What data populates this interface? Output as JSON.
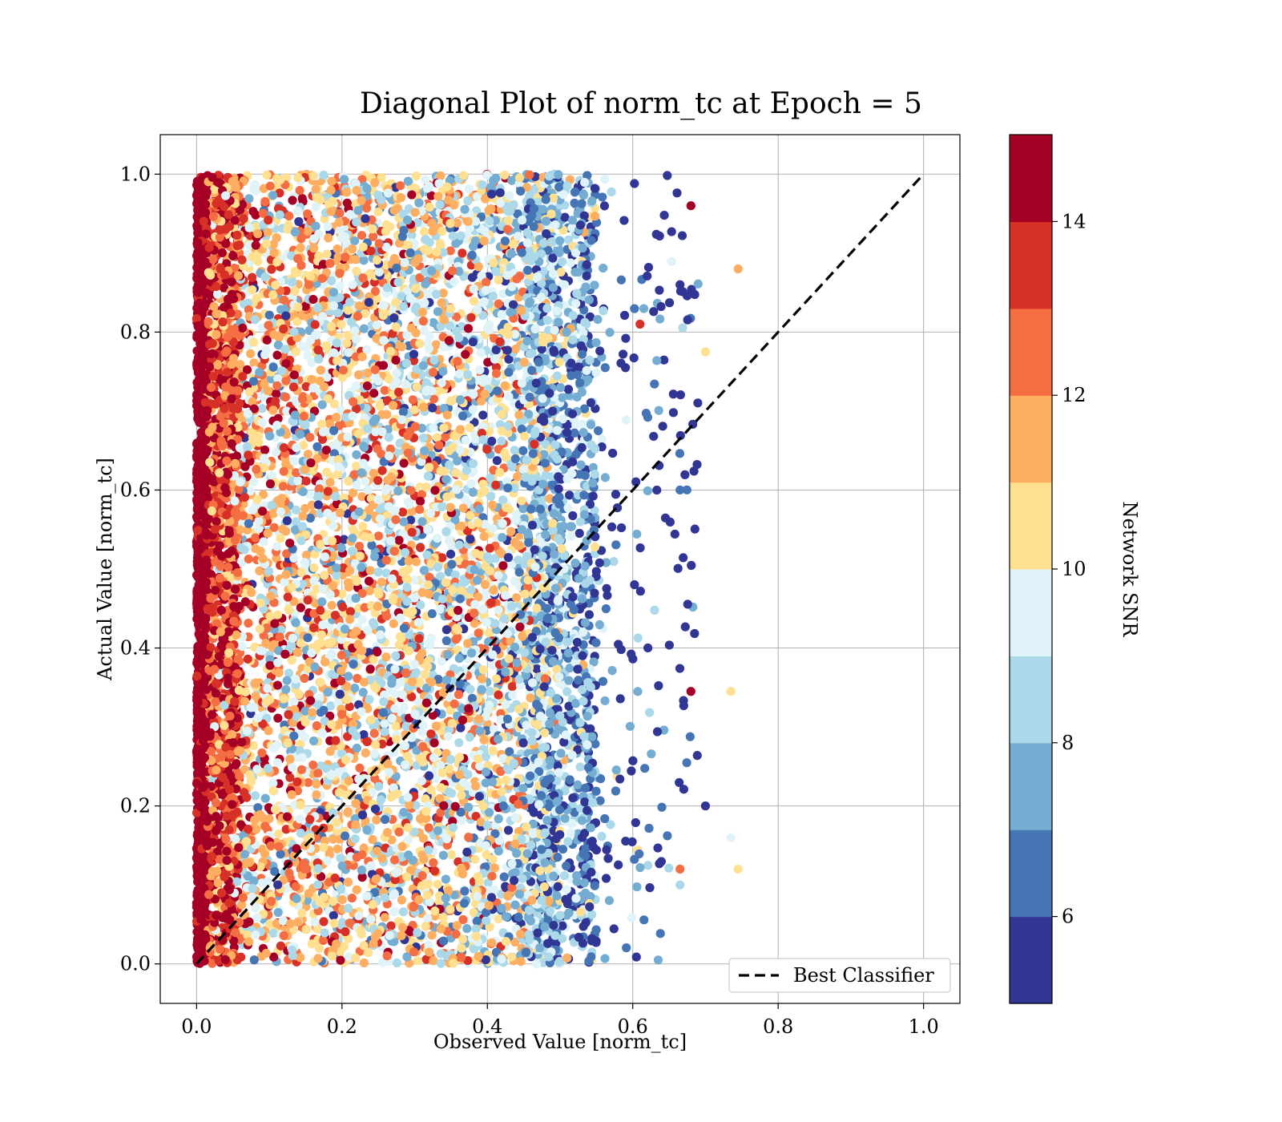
{
  "chart_data": {
    "type": "scatter",
    "title": "Diagonal Plot of norm_tc at Epoch = 5",
    "xlabel": "Observed Value [norm_tc]",
    "ylabel": "Actual Value [norm_tc]",
    "xlim": [
      -0.05,
      1.05
    ],
    "ylim": [
      -0.05,
      1.05
    ],
    "xticks": [
      "0.0",
      "0.2",
      "0.4",
      "0.6",
      "0.8",
      "1.0"
    ],
    "yticks": [
      "0.0",
      "0.2",
      "0.4",
      "0.6",
      "0.8",
      "1.0"
    ],
    "grid": true,
    "legend": {
      "position": "lower-right",
      "entries": [
        "Best Classifier"
      ]
    },
    "reference_line": {
      "name": "Best Classifier",
      "style": "dashed",
      "color": "#000000",
      "x": [
        0.0,
        1.0
      ],
      "y": [
        0.0,
        1.0
      ]
    },
    "colorbar": {
      "label": "Network SNR",
      "min": 5,
      "max": 15,
      "ticks": [
        "6",
        "8",
        "10",
        "12",
        "14"
      ],
      "colors": [
        "#313695",
        "#4575b4",
        "#74add1",
        "#abd9e9",
        "#e0f3f8",
        "#fee090",
        "#fdae61",
        "#f46d43",
        "#d73027",
        "#a50026"
      ]
    },
    "sample_points": [
      {
        "x": 0.68,
        "y": 0.96,
        "snr": 14.5
      },
      {
        "x": 0.745,
        "y": 0.88,
        "snr": 11.5
      },
      {
        "x": 0.7,
        "y": 0.775,
        "snr": 10.5
      },
      {
        "x": 0.665,
        "y": 0.86,
        "snr": 5.5
      },
      {
        "x": 0.665,
        "y": 0.6,
        "snr": 6.5
      },
      {
        "x": 0.68,
        "y": 0.345,
        "snr": 14.5
      },
      {
        "x": 0.735,
        "y": 0.345,
        "snr": 10.5
      },
      {
        "x": 0.7,
        "y": 0.2,
        "snr": 5.5
      },
      {
        "x": 0.745,
        "y": 0.12,
        "snr": 10.5
      },
      {
        "x": 0.735,
        "y": 0.16,
        "snr": 9.5
      },
      {
        "x": 0.665,
        "y": 0.1,
        "snr": 8.5
      },
      {
        "x": 0.635,
        "y": 0.005,
        "snr": 7.5
      },
      {
        "x": 0.665,
        "y": 0.12,
        "snr": 12.5
      },
      {
        "x": 0.61,
        "y": 0.81,
        "snr": 13.5
      }
    ]
  }
}
